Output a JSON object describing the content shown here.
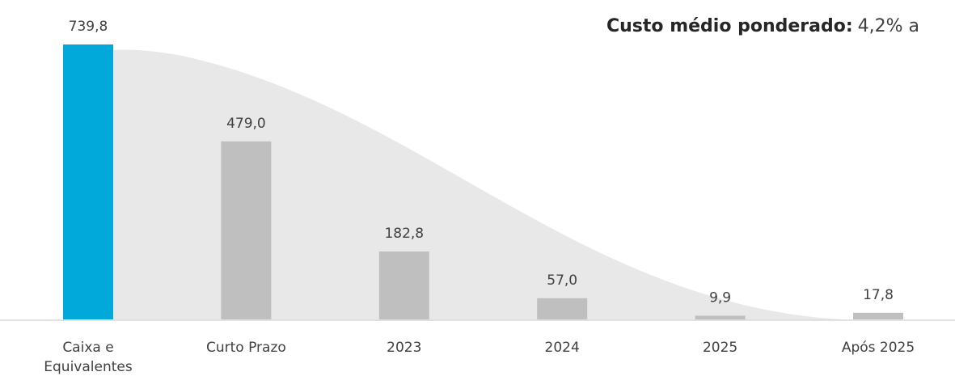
{
  "chart_data": {
    "type": "bar",
    "annotation_label": "Custo médio ponderado:",
    "annotation_value": "4,2% a",
    "categories": [
      "Caixa e Equivalentes",
      "Curto Prazo",
      "2023",
      "2024",
      "2025",
      "Após 2025"
    ],
    "values": [
      739.8,
      479.0,
      182.8,
      57.0,
      9.9,
      17.8
    ],
    "value_labels": [
      "739,8",
      "479,0",
      "182,8",
      "57,0",
      "9,9",
      "17,8"
    ],
    "colors": [
      "#00a9d9",
      "#bfbfbf",
      "#bfbfbf",
      "#bfbfbf",
      "#bfbfbf",
      "#bfbfbf"
    ]
  }
}
